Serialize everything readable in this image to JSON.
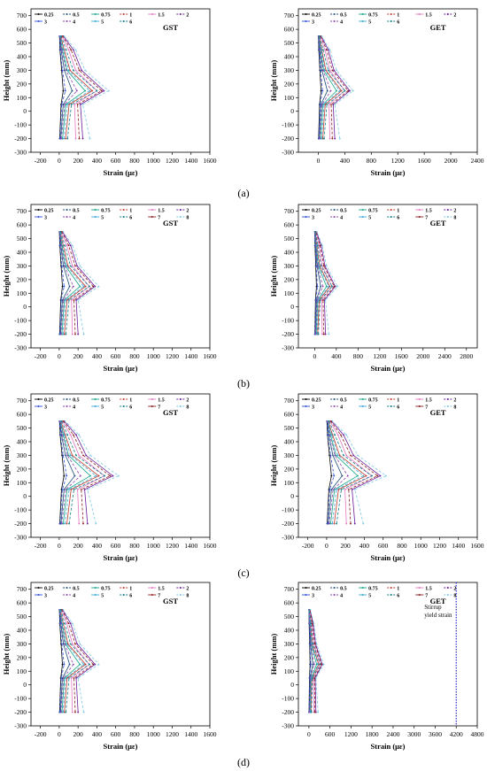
{
  "figure": {
    "panel_labels": [
      "(a)",
      "(b)",
      "(c)",
      "(d)"
    ],
    "level_names": [
      "0.25",
      "0.5",
      "0.75",
      "1",
      "1.5",
      "2",
      "3",
      "4",
      "5",
      "6",
      "7",
      "8"
    ],
    "level_colors": [
      "#000000",
      "#1f4e79",
      "#17a589",
      "#c0392b",
      "#e377c2",
      "#6a1b9a",
      "#2e4fd6",
      "#8e44ad",
      "#3aa7d8",
      "#0e7c86",
      "#8b1a1a",
      "#7ec8e3"
    ],
    "row_scales": [
      0.25,
      0.2,
      0.3,
      0.2
    ],
    "row_level_counts": [
      10,
      12,
      12,
      12
    ],
    "heights": [
      -200,
      50,
      150,
      300,
      450,
      550
    ]
  },
  "chart_data": [
    {
      "type": "line",
      "panel": "a-left",
      "panel_text": "GST",
      "xlabel": "Strain (με)",
      "ylabel": "Height (mm)",
      "xlim": [
        -300,
        1600
      ],
      "ylim": [
        -300,
        750
      ],
      "xticks": [
        -200,
        0,
        200,
        400,
        600,
        800,
        1000,
        1200,
        1400,
        1600
      ],
      "yticks": [
        -300,
        -200,
        -100,
        0,
        100,
        200,
        300,
        400,
        500,
        600,
        700
      ],
      "heights": [
        -200,
        50,
        150,
        300,
        450,
        550
      ],
      "solid_profiles": [
        [
          20,
          80,
          170,
          100,
          30,
          10
        ],
        [
          60,
          170,
          550,
          220,
          80,
          20
        ],
        [
          140,
          280,
          1100,
          330,
          140,
          40
        ],
        [
          270,
          420,
          1400,
          460,
          210,
          60
        ],
        [
          700,
          650,
          1600,
          700,
          400,
          120
        ],
        [
          1000,
          900,
          1900,
          950,
          600,
          180
        ]
      ],
      "dashed_profiles": [
        [
          30,
          110,
          260,
          140,
          40,
          20
        ],
        [
          90,
          230,
          750,
          290,
          110,
          30
        ],
        [
          200,
          350,
          1300,
          400,
          180,
          50
        ],
        [
          350,
          520,
          1600,
          600,
          290,
          90
        ],
        [
          850,
          780,
          1800,
          850,
          500,
          150
        ],
        [
          1300,
          1000,
          2100,
          1100,
          700,
          210
        ]
      ]
    },
    {
      "type": "line",
      "panel": "a-right",
      "panel_text": "GET",
      "xlabel": "Strain (με)",
      "ylabel": "Height (mm)",
      "xlim": [
        -300,
        2400
      ],
      "ylim": [
        -300,
        750
      ],
      "xticks": [
        0,
        400,
        800,
        1200,
        1600,
        2000,
        2400
      ],
      "yticks": [
        -300,
        -200,
        -100,
        0,
        100,
        200,
        300,
        400,
        500,
        600,
        700
      ],
      "heights": [
        -200,
        50,
        150,
        300,
        450,
        550
      ],
      "solid_profiles": [
        [
          20,
          80,
          170,
          100,
          30,
          10
        ],
        [
          60,
          170,
          550,
          220,
          80,
          20
        ],
        [
          140,
          280,
          1100,
          330,
          140,
          40
        ],
        [
          270,
          420,
          1400,
          460,
          210,
          60
        ],
        [
          700,
          650,
          1600,
          700,
          400,
          120
        ],
        [
          1000,
          900,
          1900,
          950,
          600,
          180
        ]
      ],
      "dashed_profiles": [
        [
          30,
          110,
          260,
          140,
          40,
          20
        ],
        [
          90,
          230,
          750,
          290,
          110,
          30
        ],
        [
          200,
          350,
          1300,
          400,
          180,
          50
        ],
        [
          350,
          520,
          1600,
          600,
          290,
          90
        ],
        [
          850,
          780,
          1800,
          850,
          500,
          150
        ],
        [
          1300,
          1000,
          2100,
          1100,
          700,
          210
        ]
      ]
    },
    {
      "type": "line",
      "panel": "b-left",
      "panel_text": "GST",
      "xlabel": "Strain (με)",
      "ylabel": "Height (mm)",
      "xlim": [
        -300,
        1600
      ],
      "ylim": [
        -300,
        750
      ],
      "xticks": [
        -200,
        0,
        200,
        400,
        600,
        800,
        1000,
        1200,
        1400,
        1600
      ],
      "yticks": [
        -300,
        -200,
        -100,
        0,
        100,
        200,
        300,
        400,
        500,
        600,
        700
      ],
      "heights": [
        -200,
        50,
        150,
        300,
        450,
        550
      ],
      "solid_profiles": [
        [
          20,
          80,
          170,
          100,
          30,
          10
        ],
        [
          60,
          170,
          550,
          220,
          80,
          20
        ],
        [
          140,
          280,
          1100,
          330,
          140,
          40
        ],
        [
          270,
          420,
          1400,
          460,
          210,
          60
        ],
        [
          700,
          650,
          1600,
          700,
          400,
          120
        ],
        [
          1000,
          900,
          1900,
          950,
          600,
          180
        ]
      ],
      "dashed_profiles": [
        [
          30,
          110,
          260,
          140,
          40,
          20
        ],
        [
          90,
          230,
          750,
          290,
          110,
          30
        ],
        [
          200,
          350,
          1300,
          400,
          180,
          50
        ],
        [
          350,
          520,
          1600,
          600,
          290,
          90
        ],
        [
          850,
          780,
          1800,
          850,
          500,
          150
        ],
        [
          1300,
          1000,
          2100,
          1100,
          700,
          210
        ]
      ]
    },
    {
      "type": "line",
      "panel": "b-right",
      "panel_text": "GET",
      "xlabel": "Strain (με)",
      "ylabel": "Height (mm)",
      "xlim": [
        -300,
        3000
      ],
      "ylim": [
        -300,
        750
      ],
      "xticks": [
        0,
        400,
        800,
        1200,
        1600,
        2000,
        2400,
        2800
      ],
      "yticks": [
        -300,
        -200,
        -100,
        0,
        100,
        200,
        300,
        400,
        500,
        600,
        700
      ],
      "heights": [
        -200,
        50,
        150,
        300,
        450,
        550
      ],
      "solid_profiles": [
        [
          20,
          80,
          170,
          100,
          30,
          10
        ],
        [
          60,
          170,
          550,
          220,
          80,
          20
        ],
        [
          140,
          280,
          1100,
          330,
          140,
          40
        ],
        [
          270,
          420,
          1400,
          460,
          210,
          60
        ],
        [
          700,
          650,
          1600,
          700,
          400,
          120
        ],
        [
          1000,
          900,
          1900,
          950,
          600,
          180
        ]
      ],
      "dashed_profiles": [
        [
          30,
          110,
          260,
          140,
          40,
          20
        ],
        [
          90,
          230,
          750,
          290,
          110,
          30
        ],
        [
          200,
          350,
          1300,
          400,
          180,
          50
        ],
        [
          350,
          520,
          1600,
          600,
          290,
          90
        ],
        [
          850,
          780,
          1800,
          850,
          500,
          150
        ],
        [
          1300,
          1000,
          2100,
          1100,
          700,
          210
        ]
      ]
    },
    {
      "type": "line",
      "panel": "c-left",
      "panel_text": "GST",
      "xlabel": "Strain (με)",
      "ylabel": "Height (mm)",
      "xlim": [
        -300,
        1600
      ],
      "ylim": [
        -300,
        750
      ],
      "xticks": [
        -200,
        0,
        200,
        400,
        600,
        800,
        1000,
        1200,
        1400,
        1600
      ],
      "yticks": [
        -300,
        -200,
        -100,
        0,
        100,
        200,
        300,
        400,
        500,
        600,
        700
      ],
      "heights": [
        -200,
        50,
        150,
        300,
        450,
        550
      ],
      "solid_profiles": [
        [
          20,
          80,
          170,
          100,
          30,
          10
        ],
        [
          60,
          170,
          550,
          220,
          80,
          20
        ],
        [
          140,
          280,
          1100,
          330,
          140,
          40
        ],
        [
          270,
          420,
          1400,
          460,
          210,
          60
        ],
        [
          700,
          650,
          1600,
          700,
          400,
          120
        ],
        [
          1000,
          900,
          1900,
          950,
          600,
          180
        ]
      ],
      "dashed_profiles": [
        [
          30,
          110,
          260,
          140,
          40,
          20
        ],
        [
          90,
          230,
          750,
          290,
          110,
          30
        ],
        [
          200,
          350,
          1300,
          400,
          180,
          50
        ],
        [
          350,
          520,
          1600,
          600,
          290,
          90
        ],
        [
          850,
          780,
          1800,
          850,
          500,
          150
        ],
        [
          1300,
          1000,
          2100,
          1100,
          700,
          210
        ]
      ]
    },
    {
      "type": "line",
      "panel": "c-right",
      "panel_text": "GET",
      "xlabel": "Strain (με)",
      "ylabel": "Height (mm)",
      "xlim": [
        -300,
        1600
      ],
      "ylim": [
        -300,
        750
      ],
      "xticks": [
        -200,
        0,
        200,
        400,
        600,
        800,
        1000,
        1200,
        1400,
        1600
      ],
      "yticks": [
        -300,
        -200,
        -100,
        0,
        100,
        200,
        300,
        400,
        500,
        600,
        700
      ],
      "heights": [
        -200,
        50,
        150,
        300,
        450,
        550
      ],
      "solid_profiles": [
        [
          20,
          80,
          170,
          100,
          30,
          10
        ],
        [
          60,
          170,
          550,
          220,
          80,
          20
        ],
        [
          140,
          280,
          1100,
          330,
          140,
          40
        ],
        [
          270,
          420,
          1400,
          460,
          210,
          60
        ],
        [
          700,
          650,
          1600,
          700,
          400,
          120
        ],
        [
          1000,
          900,
          1900,
          950,
          600,
          180
        ]
      ],
      "dashed_profiles": [
        [
          30,
          110,
          260,
          140,
          40,
          20
        ],
        [
          90,
          230,
          750,
          290,
          110,
          30
        ],
        [
          200,
          350,
          1300,
          400,
          180,
          50
        ],
        [
          350,
          520,
          1600,
          600,
          290,
          90
        ],
        [
          850,
          780,
          1800,
          850,
          500,
          150
        ],
        [
          1300,
          1000,
          2100,
          1100,
          700,
          210
        ]
      ]
    },
    {
      "type": "line",
      "panel": "d-left",
      "panel_text": "GST",
      "xlabel": "Strain (με)",
      "ylabel": "Height (mm)",
      "xlim": [
        -300,
        1600
      ],
      "ylim": [
        -300,
        750
      ],
      "xticks": [
        -200,
        0,
        200,
        400,
        600,
        800,
        1000,
        1200,
        1400,
        1600
      ],
      "yticks": [
        -300,
        -200,
        -100,
        0,
        100,
        200,
        300,
        400,
        500,
        600,
        700
      ],
      "heights": [
        -200,
        50,
        150,
        300,
        450,
        550
      ],
      "solid_profiles": [
        [
          20,
          80,
          170,
          100,
          30,
          10
        ],
        [
          60,
          170,
          550,
          220,
          80,
          20
        ],
        [
          140,
          280,
          1100,
          330,
          140,
          40
        ],
        [
          270,
          420,
          1400,
          460,
          210,
          60
        ],
        [
          700,
          650,
          1600,
          700,
          400,
          120
        ],
        [
          1000,
          900,
          1900,
          950,
          600,
          180
        ]
      ],
      "dashed_profiles": [
        [
          30,
          110,
          260,
          140,
          40,
          20
        ],
        [
          90,
          230,
          750,
          290,
          110,
          30
        ],
        [
          200,
          350,
          1300,
          400,
          180,
          50
        ],
        [
          350,
          520,
          1600,
          600,
          290,
          90
        ],
        [
          850,
          780,
          1800,
          850,
          500,
          150
        ],
        [
          1300,
          1000,
          2100,
          1100,
          700,
          210
        ]
      ]
    },
    {
      "type": "line",
      "panel": "d-right",
      "panel_text": "GET",
      "xlabel": "Strain (με)",
      "ylabel": "Height (mm)",
      "xlim": [
        -300,
        4800
      ],
      "ylim": [
        -300,
        750
      ],
      "xticks": [
        0,
        600,
        1200,
        1800,
        2400,
        3000,
        3600,
        4200,
        4800
      ],
      "yticks": [
        -300,
        -200,
        -100,
        0,
        100,
        200,
        300,
        400,
        500,
        600,
        700
      ],
      "heights": [
        -200,
        50,
        150,
        300,
        450,
        550
      ],
      "solid_profiles": [
        [
          20,
          80,
          170,
          100,
          30,
          10
        ],
        [
          60,
          170,
          550,
          220,
          80,
          20
        ],
        [
          140,
          280,
          1100,
          330,
          140,
          40
        ],
        [
          270,
          420,
          1400,
          460,
          210,
          60
        ],
        [
          700,
          650,
          1600,
          700,
          400,
          120
        ],
        [
          1000,
          900,
          1900,
          950,
          600,
          180
        ]
      ],
      "dashed_profiles": [
        [
          30,
          110,
          260,
          140,
          40,
          20
        ],
        [
          90,
          230,
          750,
          290,
          110,
          30
        ],
        [
          200,
          350,
          1300,
          400,
          180,
          50
        ],
        [
          350,
          520,
          1600,
          600,
          290,
          90
        ],
        [
          850,
          780,
          1800,
          850,
          500,
          150
        ],
        [
          1300,
          1000,
          2100,
          1100,
          700,
          210
        ]
      ],
      "reference_line": {
        "x": 4200,
        "label_lines": [
          "Stirrup",
          "yield strain"
        ]
      }
    }
  ]
}
